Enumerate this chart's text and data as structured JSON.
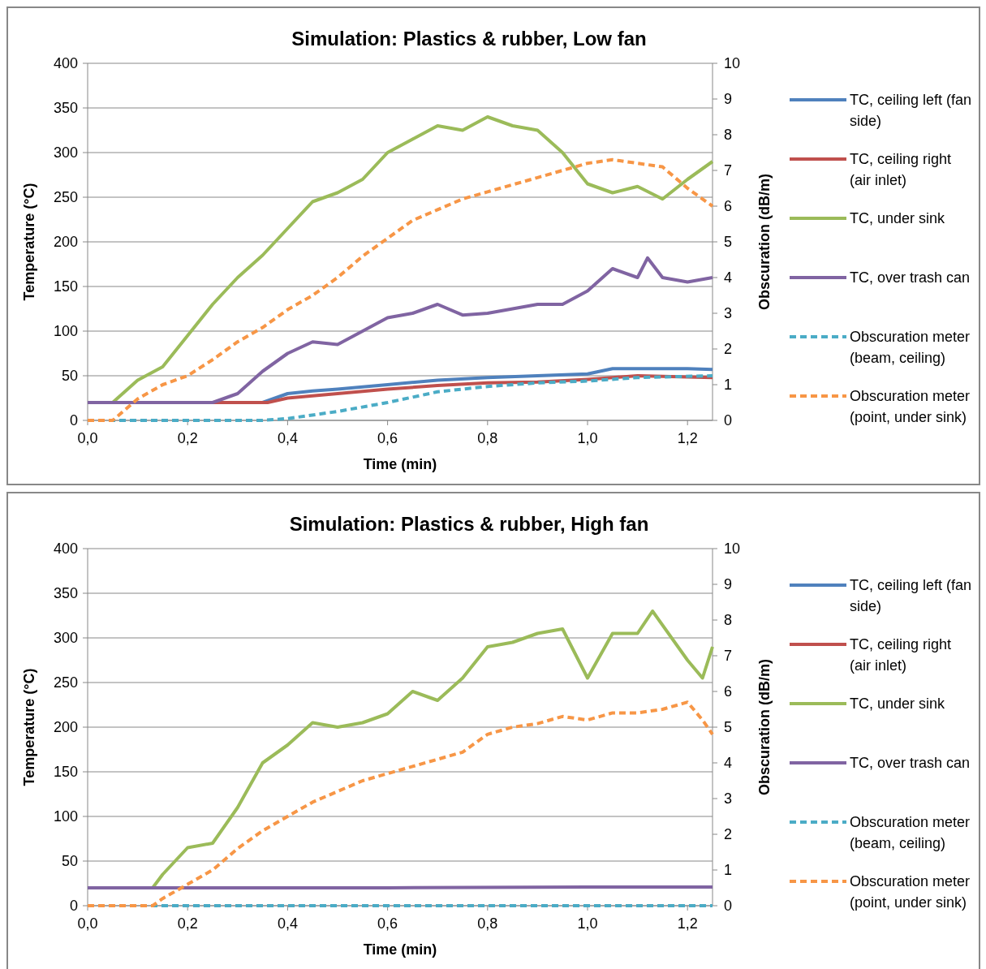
{
  "chart_data": [
    {
      "type": "line",
      "title": "Simulation: Plastics & rubber, Low fan",
      "xlabel": "Time (min)",
      "ylabel": "Temperature (°C)",
      "y2label": "Obscuration (dB/m)",
      "xlim": [
        0,
        1.25
      ],
      "xticks": [
        {
          "value": 0,
          "label": "0,0"
        },
        {
          "value": 0.2,
          "label": "0,2"
        },
        {
          "value": 0.4,
          "label": "0,4"
        },
        {
          "value": 0.6,
          "label": "0,6"
        },
        {
          "value": 0.8,
          "label": "0,8"
        },
        {
          "value": 1,
          "label": "1,0"
        },
        {
          "value": 1.2,
          "label": "1,2"
        }
      ],
      "ylim": [
        0,
        400
      ],
      "yticks": [
        0,
        50,
        100,
        150,
        200,
        250,
        300,
        350,
        400
      ],
      "y2lim": [
        0,
        10
      ],
      "y2ticks": [
        0,
        1,
        2,
        3,
        4,
        5,
        6,
        7,
        8,
        9,
        10
      ],
      "grid": "y",
      "legend": "right",
      "series": [
        {
          "name": "TC, ceiling left (fan side)",
          "color": "#4f81bd",
          "line_style": "solid",
          "x": [
            0,
            0.35,
            0.4,
            0.45,
            0.5,
            0.6,
            0.7,
            0.8,
            0.9,
            1.0,
            1.05,
            1.1,
            1.2,
            1.25
          ],
          "values": [
            20,
            20,
            30,
            33,
            35,
            40,
            45,
            48,
            50,
            52,
            58,
            58,
            58,
            57
          ]
        },
        {
          "name": "TC, ceiling right (air inlet)",
          "color": "#c0504d",
          "line_style": "solid",
          "x": [
            0,
            0.36,
            0.4,
            0.5,
            0.6,
            0.7,
            0.8,
            0.9,
            1.0,
            1.05,
            1.1,
            1.25
          ],
          "values": [
            20,
            20,
            25,
            30,
            35,
            39,
            42,
            43,
            46,
            48,
            50,
            48
          ]
        },
        {
          "name": "TC, under sink",
          "color": "#9bbb59",
          "line_style": "solid",
          "x": [
            0.05,
            0.1,
            0.15,
            0.2,
            0.25,
            0.3,
            0.35,
            0.4,
            0.45,
            0.5,
            0.55,
            0.6,
            0.65,
            0.7,
            0.75,
            0.8,
            0.85,
            0.9,
            0.95,
            1.0,
            1.05,
            1.1,
            1.15,
            1.2,
            1.25
          ],
          "values": [
            20,
            45,
            60,
            95,
            130,
            160,
            185,
            215,
            245,
            255,
            270,
            300,
            315,
            330,
            325,
            340,
            330,
            325,
            300,
            265,
            255,
            262,
            248,
            270,
            290
          ]
        },
        {
          "name": "TC, over trash can",
          "color": "#8064a2",
          "line_style": "solid",
          "x": [
            0,
            0.25,
            0.3,
            0.35,
            0.4,
            0.45,
            0.5,
            0.55,
            0.6,
            0.65,
            0.7,
            0.75,
            0.8,
            0.85,
            0.9,
            0.95,
            1.0,
            1.05,
            1.1,
            1.12,
            1.15,
            1.2,
            1.25
          ],
          "values": [
            20,
            20,
            30,
            55,
            75,
            88,
            85,
            100,
            115,
            120,
            130,
            118,
            120,
            125,
            130,
            130,
            145,
            170,
            160,
            182,
            160,
            155,
            160
          ]
        },
        {
          "name": "Obscuration meter (beam, ceiling)",
          "color": "#4bacc6",
          "line_style": "dashed",
          "axis": "y2",
          "x": [
            0,
            0.35,
            0.4,
            0.5,
            0.6,
            0.7,
            0.8,
            0.9,
            1.0,
            1.1,
            1.25
          ],
          "values": [
            0,
            0,
            0.05,
            0.25,
            0.5,
            0.8,
            0.95,
            1.05,
            1.1,
            1.2,
            1.25
          ]
        },
        {
          "name": "Obscuration meter (point, under sink)",
          "color": "#f79646",
          "line_style": "dashed",
          "axis": "y2",
          "x": [
            0,
            0.05,
            0.1,
            0.15,
            0.2,
            0.25,
            0.3,
            0.35,
            0.4,
            0.45,
            0.5,
            0.55,
            0.6,
            0.65,
            0.7,
            0.75,
            0.8,
            0.85,
            0.9,
            0.95,
            1.0,
            1.05,
            1.1,
            1.15,
            1.2,
            1.25
          ],
          "values": [
            0,
            0,
            0.6,
            1.0,
            1.25,
            1.7,
            2.2,
            2.6,
            3.1,
            3.5,
            4.0,
            4.6,
            5.1,
            5.6,
            5.9,
            6.2,
            6.4,
            6.6,
            6.8,
            7.0,
            7.2,
            7.3,
            7.2,
            7.1,
            6.5,
            6.0
          ]
        }
      ]
    },
    {
      "type": "line",
      "title": "Simulation: Plastics & rubber, High fan",
      "xlabel": "Time (min)",
      "ylabel": "Temperature (°C)",
      "y2label": "Obscuration (dB/m)",
      "xlim": [
        0,
        1.25
      ],
      "xticks": [
        {
          "value": 0,
          "label": "0,0"
        },
        {
          "value": 0.2,
          "label": "0,2"
        },
        {
          "value": 0.4,
          "label": "0,4"
        },
        {
          "value": 0.6,
          "label": "0,6"
        },
        {
          "value": 0.8,
          "label": "0,8"
        },
        {
          "value": 1,
          "label": "1,0"
        },
        {
          "value": 1.2,
          "label": "1,2"
        }
      ],
      "ylim": [
        0,
        400
      ],
      "yticks": [
        0,
        50,
        100,
        150,
        200,
        250,
        300,
        350,
        400
      ],
      "y2lim": [
        0,
        10
      ],
      "y2ticks": [
        0,
        1,
        2,
        3,
        4,
        5,
        6,
        7,
        8,
        9,
        10
      ],
      "grid": "y",
      "legend": "right",
      "series": [
        {
          "name": "TC, ceiling left (fan side)",
          "color": "#4f81bd",
          "line_style": "solid"
        },
        {
          "name": "TC, ceiling right (air inlet)",
          "color": "#c0504d",
          "line_style": "solid"
        },
        {
          "name": "TC, under sink",
          "color": "#9bbb59",
          "line_style": "solid",
          "x": [
            0.13,
            0.15,
            0.2,
            0.25,
            0.3,
            0.35,
            0.4,
            0.45,
            0.5,
            0.55,
            0.6,
            0.65,
            0.7,
            0.75,
            0.8,
            0.85,
            0.9,
            0.95,
            1.0,
            1.05,
            1.1,
            1.13,
            1.2,
            1.23,
            1.25
          ],
          "values": [
            20,
            35,
            65,
            70,
            110,
            160,
            180,
            205,
            200,
            205,
            215,
            240,
            230,
            255,
            290,
            295,
            305,
            310,
            255,
            305,
            305,
            330,
            275,
            255,
            290
          ]
        },
        {
          "name": "TC, over trash can",
          "color": "#8064a2",
          "line_style": "solid",
          "x": [
            0,
            0.6,
            1.0,
            1.25
          ],
          "values": [
            20,
            20,
            21,
            21
          ]
        },
        {
          "name": "Obscuration meter (beam, ceiling)",
          "color": "#4bacc6",
          "line_style": "dashed",
          "axis": "y2",
          "x": [
            0,
            1.25
          ],
          "values": [
            0,
            0
          ]
        },
        {
          "name": "Obscuration meter (point, under sink)",
          "color": "#f79646",
          "line_style": "dashed",
          "axis": "y2",
          "x": [
            0,
            0.13,
            0.15,
            0.2,
            0.25,
            0.3,
            0.35,
            0.4,
            0.45,
            0.5,
            0.55,
            0.6,
            0.65,
            0.7,
            0.75,
            0.8,
            0.85,
            0.9,
            0.95,
            1.0,
            1.05,
            1.1,
            1.15,
            1.2,
            1.23,
            1.25
          ],
          "values": [
            0,
            0,
            0.2,
            0.6,
            1.0,
            1.6,
            2.1,
            2.5,
            2.9,
            3.2,
            3.5,
            3.7,
            3.9,
            4.1,
            4.3,
            4.8,
            5.0,
            5.1,
            5.3,
            5.2,
            5.4,
            5.4,
            5.5,
            5.7,
            5.2,
            4.8
          ]
        }
      ]
    }
  ]
}
